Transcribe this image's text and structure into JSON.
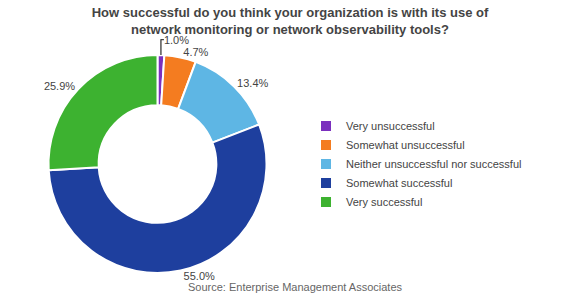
{
  "chart_data": {
    "type": "donut",
    "title": "How successful do you think your organization is with its use of\nnetwork monitoring or network observability tools?",
    "categories": [
      "Very unsuccessful",
      "Somewhat unsuccessful",
      "Neither unsuccessful nor successful",
      "Somewhat successful",
      "Very successful"
    ],
    "values": [
      1.0,
      4.7,
      13.4,
      55.0,
      25.9
    ],
    "value_labels": [
      "1.0%",
      "4.7%",
      "13.4%",
      "55.0%",
      "25.9%"
    ],
    "data_labels": true,
    "colors": [
      "#7b2fbe",
      "#f47c20",
      "#5eb6e4",
      "#1e3f9e",
      "#3db230"
    ],
    "legend": "right",
    "annotations": [
      "Source: Enterprise Management Associates"
    ]
  }
}
